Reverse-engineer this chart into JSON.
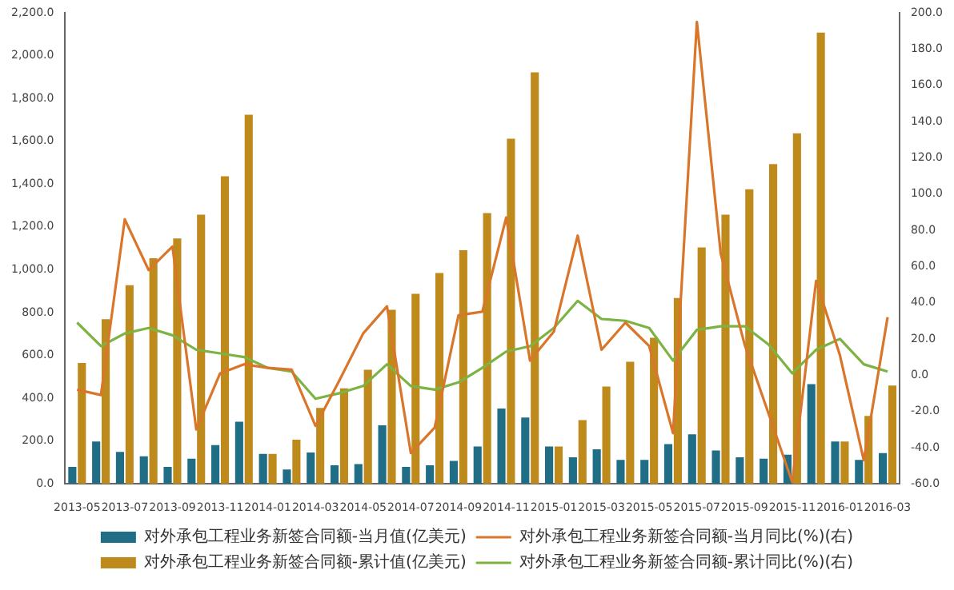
{
  "chart_data": {
    "type": "bar",
    "categories": [
      "2013-05",
      null,
      "2013-07",
      null,
      "2013-09",
      null,
      "2013-11",
      null,
      "2014-01",
      null,
      "2014-03",
      null,
      "2014-05",
      null,
      "2014-07",
      null,
      "2014-09",
      null,
      "2014-11",
      null,
      "2015-01",
      null,
      "2015-03",
      null,
      "2015-05",
      null,
      "2015-07",
      null,
      "2015-09",
      null,
      "2015-11",
      null,
      "2016-01",
      null,
      "2016-03"
    ],
    "series": [
      {
        "name": "对外承包工程业务新签合同额-当月值(亿美元)",
        "color": "#1f6e86",
        "values": [
          79,
          198,
          149,
          129,
          79,
          117,
          181,
          290,
          140,
          67,
          146,
          87,
          92,
          273,
          79,
          87,
          107,
          174,
          352,
          310,
          174,
          124,
          161,
          112,
          112,
          186,
          231,
          156,
          124,
          117,
          136,
          466,
          198,
          112,
          144
        ]
      },
      {
        "name": "对外承包工程业务新签合同额-当月同比(%)(右)",
        "type": "line",
        "axis": "y2",
        "color": "#d9762b",
        "values": [
          -8,
          -11,
          86,
          58,
          71,
          -30,
          1,
          6,
          4,
          3,
          -28,
          -3,
          23,
          38,
          -43,
          -29,
          33,
          35,
          87,
          8,
          24,
          77,
          14,
          29,
          16,
          -32,
          195,
          67,
          17,
          -21,
          -59,
          52,
          11,
          -47,
          32
        ]
      },
      {
        "name": "对外承包工程业务新签合同额-累计值(亿美元)",
        "color": "#bf8a1c",
        "values": [
          565,
          769,
          928,
          1054,
          1146,
          1257,
          1436,
          1724,
          140,
          206,
          355,
          446,
          533,
          813,
          888,
          985,
          1091,
          1265,
          1612,
          1922,
          174,
          298,
          454,
          570,
          682,
          868,
          1104,
          1257,
          1376,
          1493,
          1637,
          2108,
          198,
          317,
          459
        ]
      },
      {
        "name": "对外承包工程业务新签合同额-累计同比(%)(右)",
        "type": "line",
        "axis": "y2",
        "color": "#7cb342",
        "values": [
          29,
          16,
          23,
          26,
          22,
          14,
          12,
          10,
          4,
          2,
          -13,
          -10,
          -6,
          6,
          -6,
          -8,
          -4,
          4,
          13,
          16,
          26,
          41,
          31,
          30,
          26,
          8,
          25,
          27,
          27,
          17,
          1,
          14,
          20,
          6,
          2
        ]
      }
    ],
    "ylim": [
      0,
      2200
    ],
    "yticks": [
      {
        "value": 0,
        "label": "0.0"
      },
      {
        "value": 200,
        "label": "200.0"
      },
      {
        "value": 400,
        "label": "400.0"
      },
      {
        "value": 600,
        "label": "600.0"
      },
      {
        "value": 800,
        "label": "800.0"
      },
      {
        "value": 1000,
        "label": "1,000.0"
      },
      {
        "value": 1200,
        "label": "1,200.0"
      },
      {
        "value": 1400,
        "label": "1,400.0"
      },
      {
        "value": 1600,
        "label": "1,600.0"
      },
      {
        "value": 1800,
        "label": "1,800.0"
      },
      {
        "value": 2000,
        "label": "2,000.0"
      },
      {
        "value": 2200,
        "label": "2,200.0"
      }
    ],
    "y2lim": [
      -60,
      200
    ],
    "y2ticks": [
      {
        "value": -60,
        "label": "-60.0"
      },
      {
        "value": -40,
        "label": "-40.0"
      },
      {
        "value": -20,
        "label": "-20.0"
      },
      {
        "value": 0,
        "label": "0.0"
      },
      {
        "value": 20,
        "label": "20.0"
      },
      {
        "value": 40,
        "label": "40.0"
      },
      {
        "value": 60,
        "label": "60.0"
      },
      {
        "value": 80,
        "label": "80.0"
      },
      {
        "value": 100,
        "label": "100.0"
      },
      {
        "value": 120,
        "label": "120.0"
      },
      {
        "value": 140,
        "label": "140.0"
      },
      {
        "value": 160,
        "label": "160.0"
      },
      {
        "value": 180,
        "label": "180.0"
      },
      {
        "value": 200,
        "label": "200.0"
      }
    ],
    "grid": false,
    "legend": "bottom",
    "marker": "none",
    "line_style": "solid"
  }
}
